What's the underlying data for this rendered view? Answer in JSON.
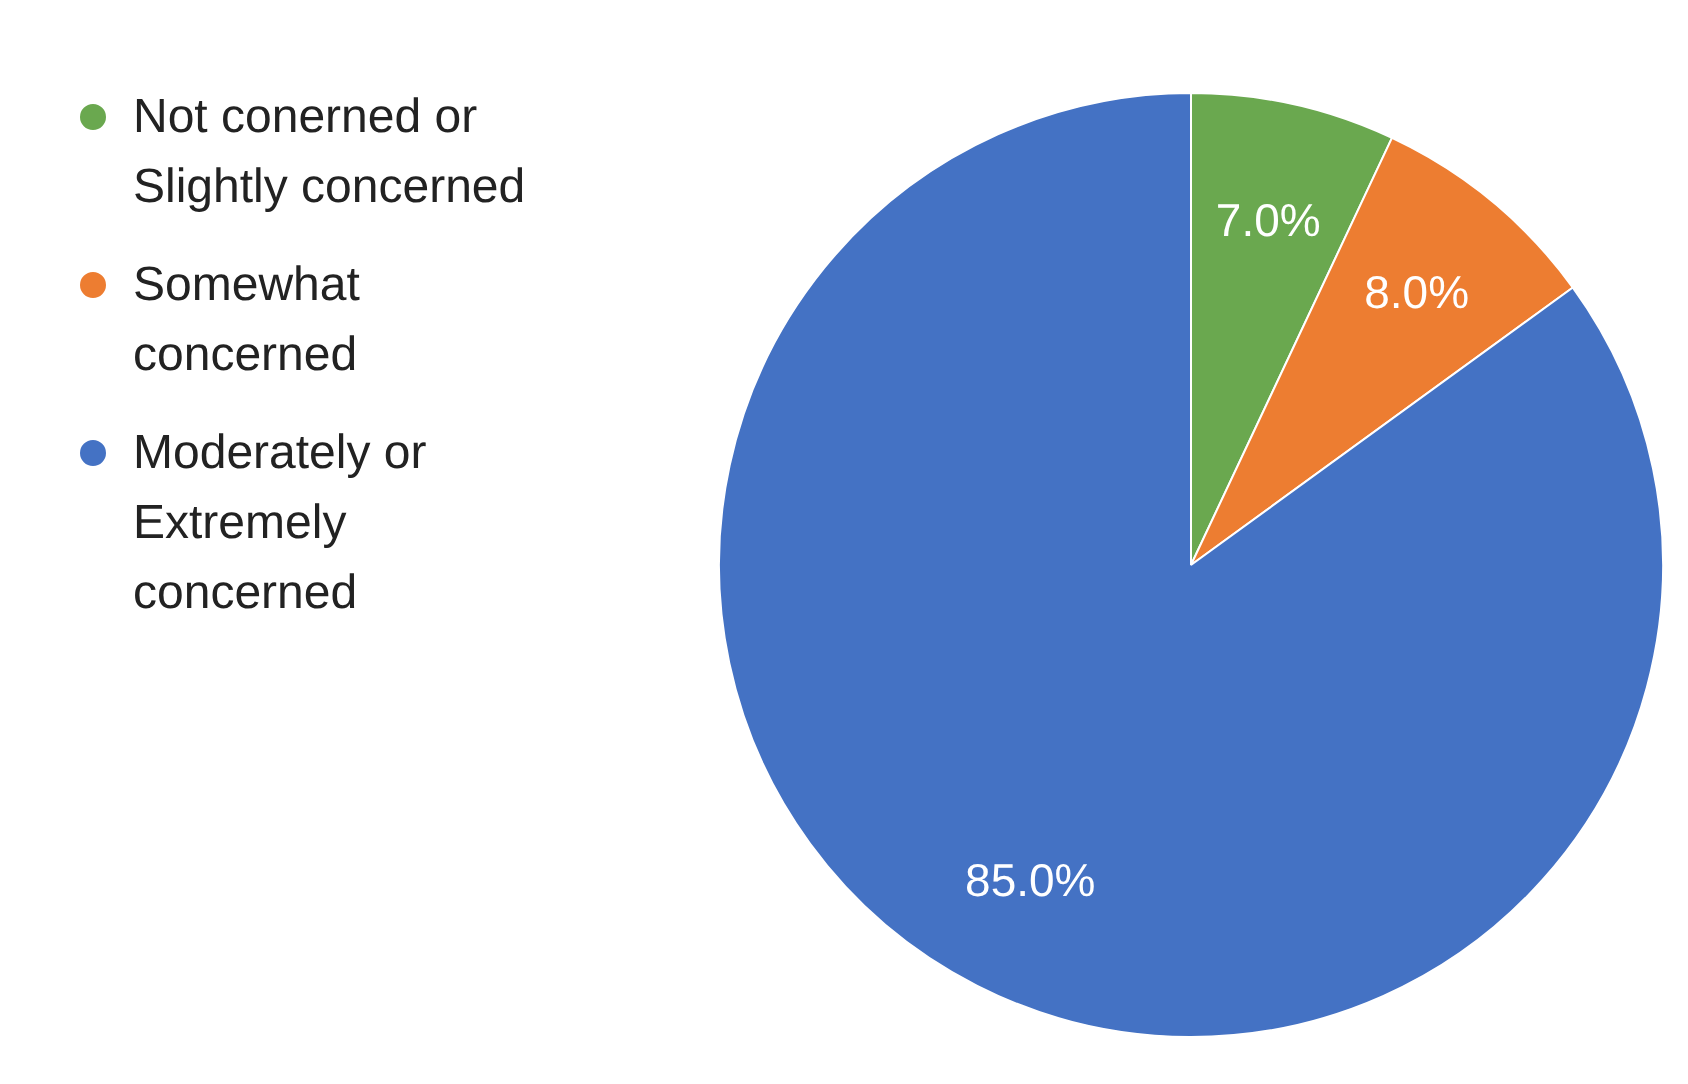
{
  "chart_data": {
    "type": "pie",
    "categories": [
      "Not conerned or Slightly concerned",
      "Somewhat concerned",
      "Moderately or Extremely concerned"
    ],
    "values": [
      7,
      8,
      85
    ],
    "colors": [
      "#6aa84f",
      "#ed7d31",
      "#4472c4"
    ],
    "value_labels": [
      "7.0%",
      "8.0%",
      "85.0%"
    ],
    "legend": "left"
  }
}
